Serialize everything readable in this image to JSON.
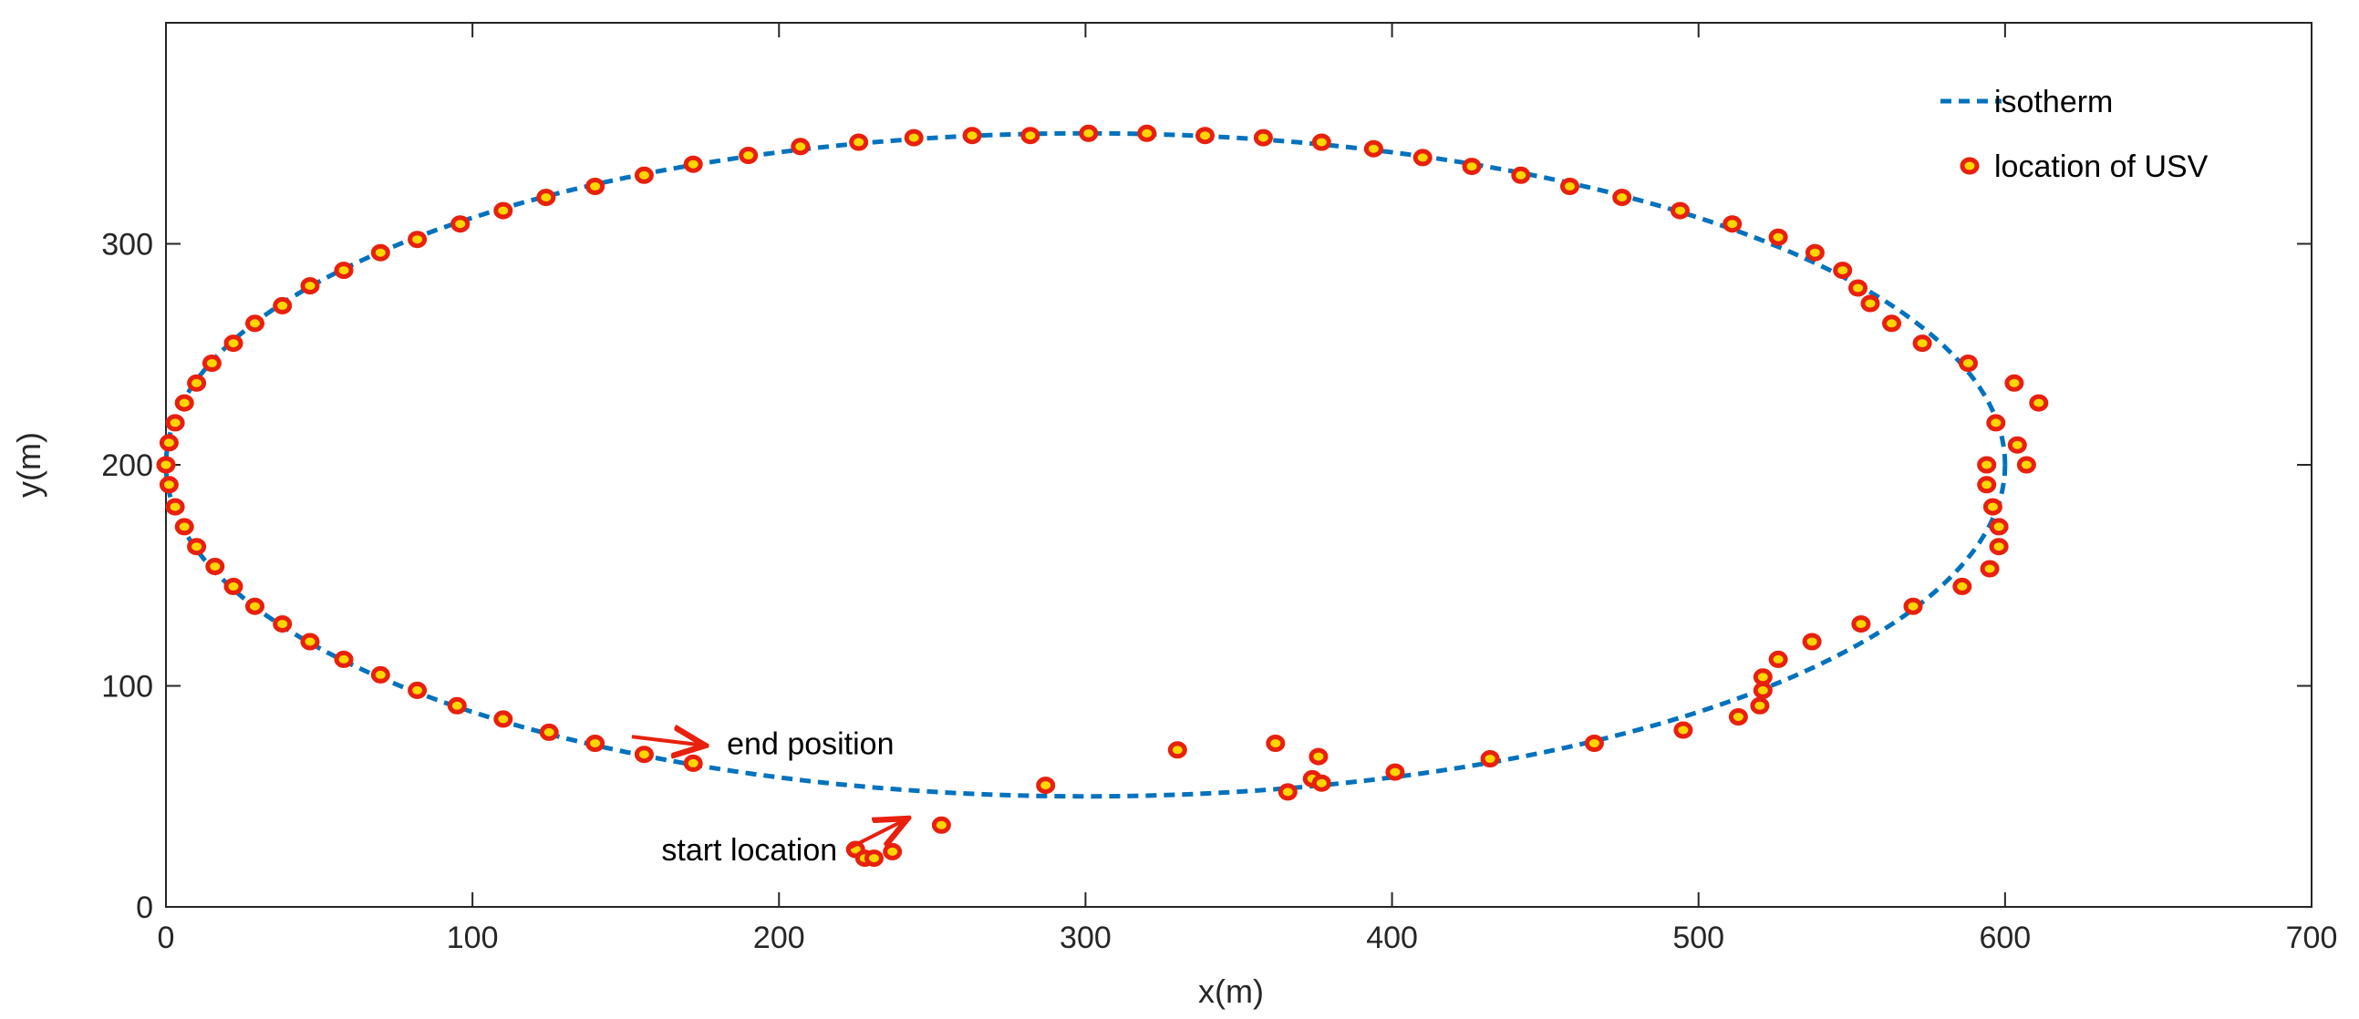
{
  "chart_data": {
    "type": "scatter",
    "title": "",
    "xlabel": "x(m)",
    "ylabel": "y(m)",
    "xlim": [
      0,
      700
    ],
    "ylim": [
      0,
      400
    ],
    "xticks": [
      "0",
      "100",
      "200",
      "300",
      "400",
      "500",
      "600",
      "700"
    ],
    "yticks": [
      "0",
      "100",
      "200",
      "300"
    ],
    "grid": false,
    "legend_position": "top-right",
    "colors": {
      "isotherm": "#0072BD",
      "point_fill": "#FFD700",
      "point_stroke": "#E8200C",
      "arrow": "#E8200C",
      "axis": "#262626"
    },
    "isotherm": {
      "name": "isotherm",
      "center_x": 300,
      "center_y": 200,
      "radius_x": 300,
      "radius_y": 150
    },
    "points_series_name": "location of USV",
    "points": [
      [
        225,
        26
      ],
      [
        228,
        22
      ],
      [
        231,
        22
      ],
      [
        237,
        25
      ],
      [
        253,
        37
      ],
      [
        287,
        55
      ],
      [
        330,
        71
      ],
      [
        362,
        74
      ],
      [
        366,
        52
      ],
      [
        374,
        58
      ],
      [
        376,
        68
      ],
      [
        377,
        56
      ],
      [
        401,
        61
      ],
      [
        432,
        67
      ],
      [
        466,
        74
      ],
      [
        495,
        80
      ],
      [
        513,
        86
      ],
      [
        520,
        91
      ],
      [
        521,
        98
      ],
      [
        521,
        104
      ],
      [
        526,
        112
      ],
      [
        537,
        120
      ],
      [
        553,
        128
      ],
      [
        570,
        136
      ],
      [
        586,
        145
      ],
      [
        595,
        153
      ],
      [
        598,
        163
      ],
      [
        598,
        172
      ],
      [
        596,
        181
      ],
      [
        594,
        191
      ],
      [
        594,
        200
      ],
      [
        607,
        200
      ],
      [
        604,
        209
      ],
      [
        611,
        228
      ],
      [
        603,
        237
      ],
      [
        597,
        219
      ],
      [
        588,
        246
      ],
      [
        573,
        255
      ],
      [
        563,
        264
      ],
      [
        556,
        273
      ],
      [
        552,
        280
      ],
      [
        547,
        288
      ],
      [
        538,
        296
      ],
      [
        526,
        303
      ],
      [
        511,
        309
      ],
      [
        494,
        315
      ],
      [
        475,
        321
      ],
      [
        458,
        326
      ],
      [
        442,
        331
      ],
      [
        426,
        335
      ],
      [
        410,
        339
      ],
      [
        394,
        343
      ],
      [
        377,
        346
      ],
      [
        358,
        348
      ],
      [
        339,
        349
      ],
      [
        320,
        350
      ],
      [
        301,
        350
      ],
      [
        282,
        349
      ],
      [
        263,
        349
      ],
      [
        244,
        348
      ],
      [
        226,
        346
      ],
      [
        207,
        344
      ],
      [
        190,
        340
      ],
      [
        172,
        336
      ],
      [
        156,
        331
      ],
      [
        140,
        326
      ],
      [
        124,
        321
      ],
      [
        110,
        315
      ],
      [
        96,
        309
      ],
      [
        82,
        302
      ],
      [
        70,
        296
      ],
      [
        58,
        288
      ],
      [
        47,
        281
      ],
      [
        38,
        272
      ],
      [
        29,
        264
      ],
      [
        22,
        255
      ],
      [
        15,
        246
      ],
      [
        10,
        237
      ],
      [
        6,
        228
      ],
      [
        3,
        219
      ],
      [
        1,
        210
      ],
      [
        0,
        200
      ],
      [
        1,
        191
      ],
      [
        3,
        181
      ],
      [
        6,
        172
      ],
      [
        10,
        163
      ],
      [
        16,
        154
      ],
      [
        22,
        145
      ],
      [
        29,
        136
      ],
      [
        38,
        128
      ],
      [
        47,
        120
      ],
      [
        58,
        112
      ],
      [
        70,
        105
      ],
      [
        82,
        98
      ],
      [
        95,
        91
      ],
      [
        110,
        85
      ],
      [
        125,
        79
      ],
      [
        140,
        74
      ],
      [
        156,
        69
      ],
      [
        172,
        65
      ]
    ],
    "annotations": [
      {
        "text": "end position",
        "x": 183,
        "y": 74,
        "arrow_from": [
          152,
          77
        ],
        "arrow_to": [
          176,
          73
        ]
      },
      {
        "text": "start location",
        "x": 219,
        "y": 26,
        "arrow_from": [
          222,
          26
        ],
        "arrow_to": [
          242,
          40
        ]
      }
    ]
  }
}
